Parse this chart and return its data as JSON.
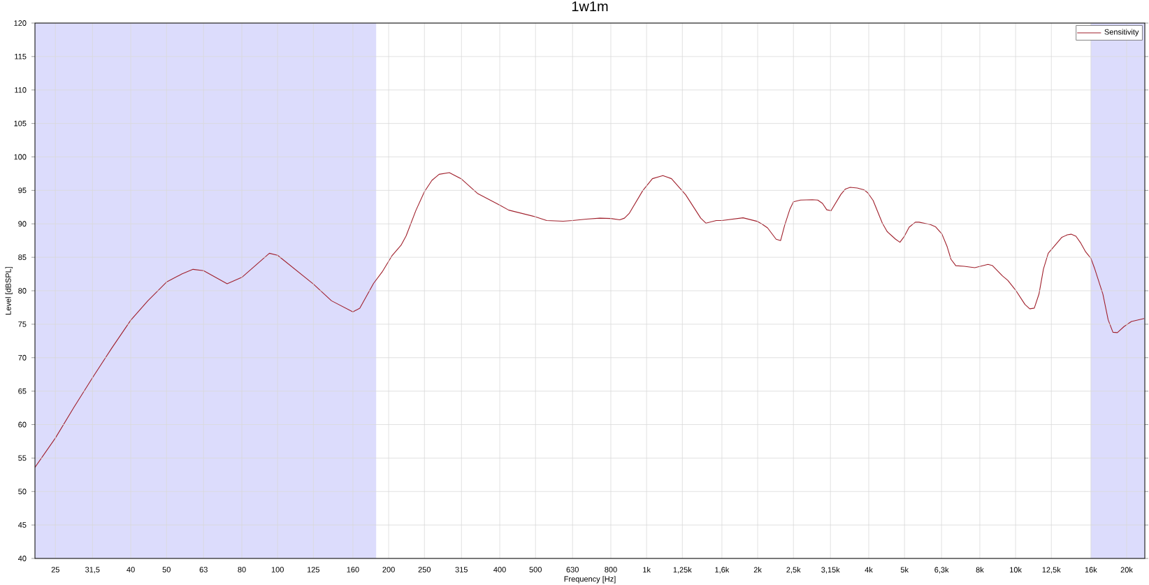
{
  "chart_data": {
    "type": "line",
    "title": "1w1m",
    "xlabel": "Frequency [Hz]",
    "ylabel": "Level [dBSPL]",
    "log": "x",
    "grid": true,
    "legend": "top right",
    "xlim": [
      22,
      22400
    ],
    "ylim": [
      40,
      120
    ],
    "xticks": [
      25,
      {
        "value": 31.5,
        "label": "31,5"
      },
      40,
      50,
      63,
      80,
      100,
      125,
      160,
      200,
      250,
      315,
      400,
      500,
      630,
      800,
      {
        "value": 1000,
        "label": "1k"
      },
      {
        "value": 1250,
        "label": "1,25k"
      },
      {
        "value": 1600,
        "label": "1,6k"
      },
      {
        "value": 2000,
        "label": "2k"
      },
      {
        "value": 2500,
        "label": "2,5k"
      },
      {
        "value": 3150,
        "label": "3,15k"
      },
      {
        "value": 4000,
        "label": "4k"
      },
      {
        "value": 5000,
        "label": "5k"
      },
      {
        "value": 6300,
        "label": "6,3k"
      },
      {
        "value": 8000,
        "label": "8k"
      },
      {
        "value": 10000,
        "label": "10k"
      },
      {
        "value": 12500,
        "label": "12,5k"
      },
      {
        "value": 16000,
        "label": "16k"
      },
      {
        "value": 20000,
        "label": "20k"
      }
    ],
    "yticks": [
      40,
      45,
      50,
      55,
      60,
      65,
      70,
      75,
      80,
      85,
      90,
      95,
      100,
      105,
      110,
      115,
      120
    ],
    "bands": [
      {
        "axis": "x",
        "from": 22,
        "to": 185,
        "color": "#dcdcfc"
      },
      {
        "axis": "x",
        "from": 16000,
        "to": 22400,
        "color": "#dcdcfc"
      }
    ],
    "series": [
      {
        "name": "Sensitivity",
        "color": "#a0202c",
        "x": [
          22,
          25,
          28,
          31.5,
          35.5,
          40,
          44.5,
          50,
          55,
          59,
          63,
          73,
          80,
          95,
          100,
          125,
          140,
          160,
          167,
          182,
          192,
          204,
          216,
          223,
          237,
          250,
          262,
          274,
          292,
          315,
          348,
          400,
          423,
          500,
          536,
          594,
          630,
          687,
          747,
          800,
          846,
          871,
          897,
          976,
          1037,
          1107,
          1168,
          1276,
          1402,
          1449,
          1545,
          1600,
          1826,
          2000,
          2057,
          2127,
          2244,
          2308,
          2366,
          2446,
          2500,
          2612,
          2812,
          2909,
          2997,
          3078,
          3161,
          3362,
          3458,
          3563,
          3723,
          3878,
          3974,
          4110,
          4354,
          4486,
          4729,
          4860,
          4984,
          5148,
          5350,
          5475,
          5875,
          6072,
          6313,
          6523,
          6684,
          6887,
          7256,
          7754,
          8419,
          8659,
          9219,
          9526,
          10000,
          10604,
          10926,
          11238,
          11571,
          11900,
          12260,
          13353,
          13804,
          14148,
          14576,
          14988,
          15490,
          16000,
          16360,
          17246,
          17822,
          18360,
          18882,
          19672,
          20600,
          22300
        ],
        "values": [
          53.6,
          58.0,
          62.5,
          67.0,
          71.4,
          75.6,
          78.5,
          81.3,
          82.5,
          83.2,
          83.0,
          81.05,
          82.0,
          85.6,
          85.3,
          81.0,
          78.5,
          76.85,
          77.4,
          81.1,
          82.8,
          85.2,
          86.8,
          88.2,
          92.0,
          94.8,
          96.5,
          97.4,
          97.65,
          96.7,
          94.55,
          92.8,
          92.05,
          91.05,
          90.5,
          90.4,
          90.5,
          90.7,
          90.85,
          90.8,
          90.6,
          90.85,
          91.55,
          94.95,
          96.75,
          97.2,
          96.75,
          94.35,
          90.85,
          90.1,
          90.5,
          90.5,
          90.9,
          90.35,
          89.95,
          89.4,
          87.7,
          87.5,
          89.75,
          92.2,
          93.3,
          93.55,
          93.6,
          93.55,
          93.05,
          92.1,
          91.95,
          94.4,
          95.2,
          95.45,
          95.35,
          95.1,
          94.65,
          93.5,
          90.1,
          88.85,
          87.7,
          87.25,
          88.05,
          89.5,
          90.25,
          90.25,
          89.9,
          89.55,
          88.5,
          86.6,
          84.7,
          83.75,
          83.65,
          83.45,
          83.95,
          83.75,
          82.2,
          81.55,
          80.1,
          77.95,
          77.3,
          77.4,
          79.5,
          83.25,
          85.6,
          88.0,
          88.35,
          88.45,
          88.15,
          87.2,
          85.8,
          84.85,
          83.4,
          79.5,
          75.65,
          73.8,
          73.75,
          74.65,
          75.4,
          75.85
        ]
      }
    ]
  }
}
